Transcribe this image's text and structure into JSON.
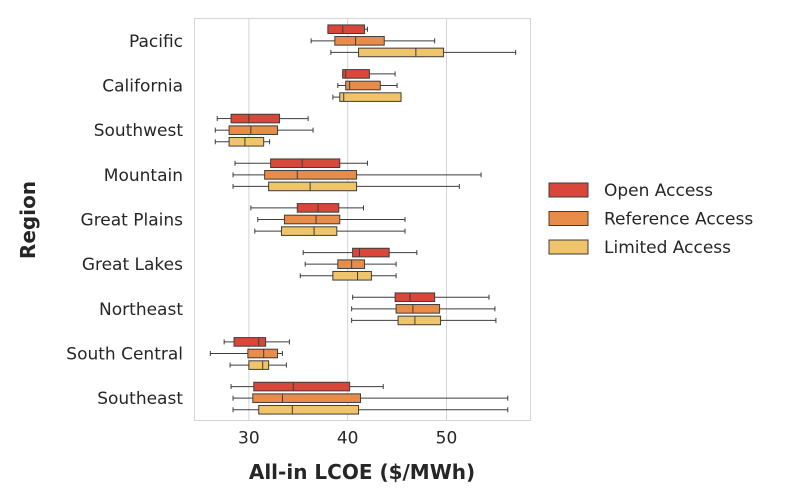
{
  "chart_data": {
    "type": "boxplot",
    "orientation": "horizontal",
    "xlabel": "All-in LCOE ($/MWh)",
    "ylabel": "Region",
    "xlim": [
      24.5,
      58.5
    ],
    "xticks": [
      30,
      40,
      50
    ],
    "grid": "vertical",
    "legend": "right",
    "categories": [
      "Pacific",
      "California",
      "Southwest",
      "Mountain",
      "Great Plains",
      "Great Lakes",
      "Northeast",
      "South Central",
      "Southeast"
    ],
    "series": [
      {
        "name": "Open Access",
        "color": "#d9473a",
        "boxes": [
          {
            "min": 38.0,
            "q1": 38.0,
            "median": 39.5,
            "q3": 41.7,
            "max": 42.0
          },
          {
            "min": 39.5,
            "q1": 39.5,
            "median": 39.8,
            "q3": 42.2,
            "max": 44.8
          },
          {
            "min": 26.8,
            "q1": 28.2,
            "median": 30.0,
            "q3": 33.1,
            "max": 36.0
          },
          {
            "min": 28.6,
            "q1": 32.2,
            "median": 35.4,
            "q3": 39.2,
            "max": 42.0
          },
          {
            "min": 30.2,
            "q1": 34.9,
            "median": 37.0,
            "q3": 39.1,
            "max": 41.6
          },
          {
            "min": 35.5,
            "q1": 40.5,
            "median": 41.2,
            "q3": 44.2,
            "max": 47.0
          },
          {
            "min": 40.5,
            "q1": 44.8,
            "median": 46.3,
            "q3": 48.8,
            "max": 54.3
          },
          {
            "min": 27.5,
            "q1": 28.5,
            "median": 31.0,
            "q3": 31.7,
            "max": 34.1
          },
          {
            "min": 28.2,
            "q1": 30.5,
            "median": 34.5,
            "q3": 40.2,
            "max": 43.6
          }
        ]
      },
      {
        "name": "Reference Access",
        "color": "#e88c4a",
        "boxes": [
          {
            "min": 36.3,
            "q1": 38.7,
            "median": 40.8,
            "q3": 43.7,
            "max": 48.8
          },
          {
            "min": 39.0,
            "q1": 39.8,
            "median": 40.2,
            "q3": 43.3,
            "max": 45.0
          },
          {
            "min": 26.6,
            "q1": 28.0,
            "median": 30.2,
            "q3": 32.9,
            "max": 36.5
          },
          {
            "min": 28.4,
            "q1": 31.6,
            "median": 34.9,
            "q3": 40.9,
            "max": 53.5
          },
          {
            "min": 30.9,
            "q1": 33.6,
            "median": 36.8,
            "q3": 39.2,
            "max": 45.8
          },
          {
            "min": 35.7,
            "q1": 39.0,
            "median": 40.4,
            "q3": 41.7,
            "max": 44.9
          },
          {
            "min": 40.4,
            "q1": 44.9,
            "median": 46.6,
            "q3": 49.3,
            "max": 54.9
          },
          {
            "min": 26.1,
            "q1": 29.9,
            "median": 31.5,
            "q3": 32.9,
            "max": 33.4
          },
          {
            "min": 28.4,
            "q1": 30.4,
            "median": 33.4,
            "q3": 41.3,
            "max": 56.2
          }
        ]
      },
      {
        "name": "Limited Access",
        "color": "#f0c46a",
        "boxes": [
          {
            "min": 38.3,
            "q1": 41.1,
            "median": 46.9,
            "q3": 49.7,
            "max": 57.0
          },
          {
            "min": 38.5,
            "q1": 39.2,
            "median": 39.6,
            "q3": 45.4,
            "max": 45.4
          },
          {
            "min": 26.6,
            "q1": 28.0,
            "median": 29.6,
            "q3": 31.5,
            "max": 32.1
          },
          {
            "min": 28.4,
            "q1": 32.0,
            "median": 36.2,
            "q3": 40.9,
            "max": 51.3
          },
          {
            "min": 30.6,
            "q1": 33.3,
            "median": 36.6,
            "q3": 38.9,
            "max": 45.8
          },
          {
            "min": 35.2,
            "q1": 38.5,
            "median": 41.0,
            "q3": 42.4,
            "max": 44.9
          },
          {
            "min": 40.4,
            "q1": 45.1,
            "median": 46.8,
            "q3": 49.4,
            "max": 55.0
          },
          {
            "min": 28.1,
            "q1": 30.0,
            "median": 31.4,
            "q3": 32.0,
            "max": 33.8
          },
          {
            "min": 28.4,
            "q1": 31.0,
            "median": 34.4,
            "q3": 41.1,
            "max": 56.2
          }
        ]
      }
    ]
  }
}
